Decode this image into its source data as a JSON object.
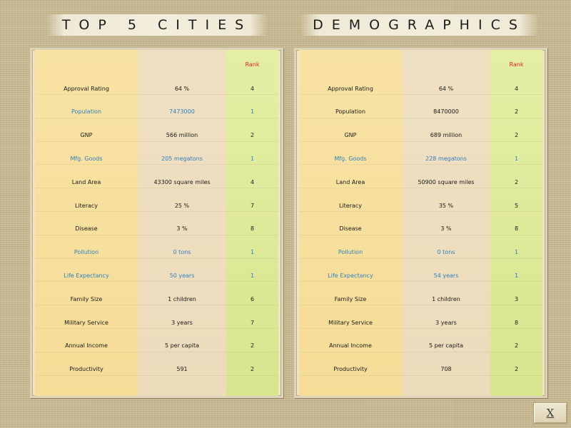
{
  "titles": {
    "left": "TOP 5 CITIES",
    "right": "DEMOGRAPHICS"
  },
  "rank_header": "Rank",
  "close_label": "X",
  "panels": [
    {
      "rows": [
        {
          "label": "Approval Rating",
          "value": "64 %",
          "rank": "4",
          "highlight": false
        },
        {
          "label": "Population",
          "value": "7473000",
          "rank": "1",
          "highlight": true
        },
        {
          "label": "GNP",
          "value": "566 million",
          "rank": "2",
          "highlight": false
        },
        {
          "label": "Mfg. Goods",
          "value": "205 megatons",
          "rank": "1",
          "highlight": true
        },
        {
          "label": "Land Area",
          "value": "43300 square miles",
          "rank": "4",
          "highlight": false
        },
        {
          "label": "Literacy",
          "value": "25 %",
          "rank": "7",
          "highlight": false
        },
        {
          "label": "Disease",
          "value": "3 %",
          "rank": "8",
          "highlight": false
        },
        {
          "label": "Pollution",
          "value": "0 tons",
          "rank": "1",
          "highlight": true
        },
        {
          "label": "Life Expectancy",
          "value": "50 years",
          "rank": "1",
          "highlight": true
        },
        {
          "label": "Family Size",
          "value": "1 children",
          "rank": "6",
          "highlight": false
        },
        {
          "label": "Military Service",
          "value": "3 years",
          "rank": "7",
          "highlight": false
        },
        {
          "label": "Annual Income",
          "value": "5 per capita",
          "rank": "2",
          "highlight": false
        },
        {
          "label": "Productivity",
          "value": "591",
          "rank": "2",
          "highlight": false
        }
      ]
    },
    {
      "rows": [
        {
          "label": "Approval Rating",
          "value": "64 %",
          "rank": "4",
          "highlight": false
        },
        {
          "label": "Population",
          "value": "8470000",
          "rank": "2",
          "highlight": false
        },
        {
          "label": "GNP",
          "value": "689 million",
          "rank": "2",
          "highlight": false
        },
        {
          "label": "Mfg. Goods",
          "value": "228 megatons",
          "rank": "1",
          "highlight": true
        },
        {
          "label": "Land Area",
          "value": "50900 square miles",
          "rank": "2",
          "highlight": false
        },
        {
          "label": "Literacy",
          "value": "35 %",
          "rank": "5",
          "highlight": false
        },
        {
          "label": "Disease",
          "value": "3 %",
          "rank": "8",
          "highlight": false
        },
        {
          "label": "Pollution",
          "value": "0 tons",
          "rank": "1",
          "highlight": true
        },
        {
          "label": "Life Expectancy",
          "value": "54 years",
          "rank": "1",
          "highlight": true
        },
        {
          "label": "Family Size",
          "value": "1 children",
          "rank": "3",
          "highlight": false
        },
        {
          "label": "Military Service",
          "value": "3 years",
          "rank": "8",
          "highlight": false
        },
        {
          "label": "Annual Income",
          "value": "5 per capita",
          "rank": "2",
          "highlight": false
        },
        {
          "label": "Productivity",
          "value": "708",
          "rank": "2",
          "highlight": false
        }
      ]
    }
  ]
}
